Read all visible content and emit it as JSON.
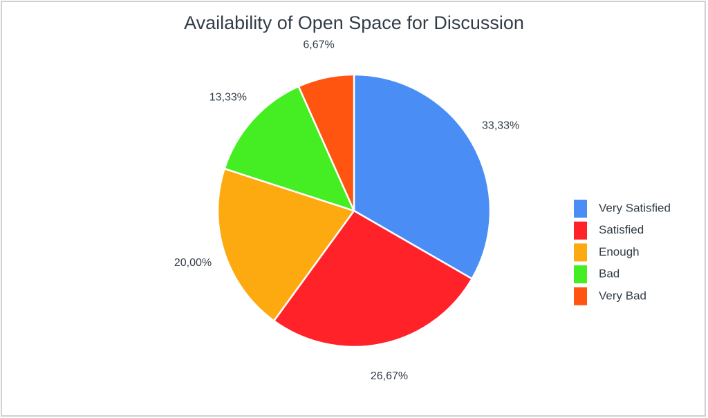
{
  "chart_data": {
    "type": "pie",
    "title": "Availability of Open Space for Discussion",
    "categories": [
      "Very Satisfied",
      "Satisfied",
      "Enough",
      "Bad",
      "Very Bad"
    ],
    "values": [
      33.33,
      26.67,
      20.0,
      13.33,
      6.67
    ],
    "value_labels": [
      "33,33%",
      "26,67%",
      "20,00%",
      "13,33%",
      "6,67%"
    ],
    "colors": [
      "#4a8ef5",
      "#ff2228",
      "#fcaa10",
      "#44ee22",
      "#ff5511"
    ],
    "legend": "right"
  }
}
